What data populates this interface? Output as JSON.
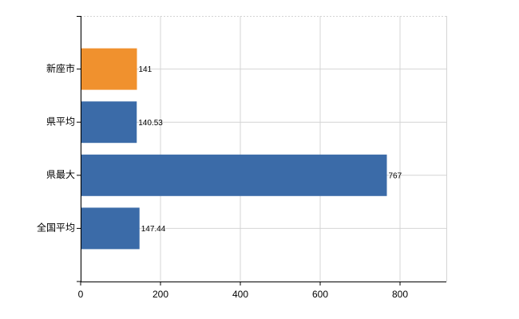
{
  "chart_data": {
    "type": "barh",
    "categories": [
      "新座市",
      "県平均",
      "県最大",
      "全国平均"
    ],
    "values": [
      141,
      140.53,
      767,
      147.44
    ],
    "colors": [
      "#f0912e",
      "#3b6ba8",
      "#3b6ba8",
      "#3b6ba8"
    ],
    "xlim": [
      0,
      916
    ],
    "xticks": [
      0,
      200,
      400,
      600,
      800
    ],
    "grid": true
  }
}
